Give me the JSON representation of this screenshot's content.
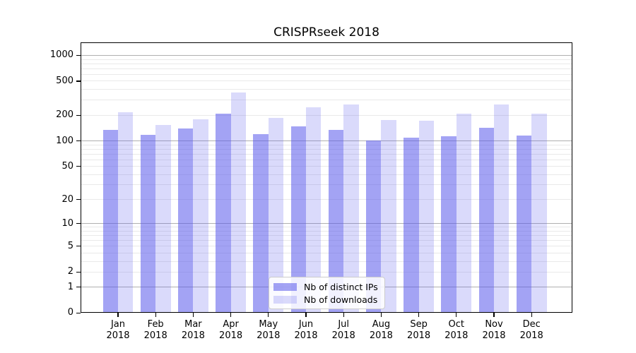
{
  "title": "CRISPRseek 2018",
  "chart_data": {
    "type": "bar",
    "title": "CRISPRseek 2018",
    "categories": [
      "Jan",
      "Feb",
      "Mar",
      "Apr",
      "May",
      "Jun",
      "Jul",
      "Aug",
      "Sep",
      "Oct",
      "Nov",
      "Dec"
    ],
    "category_year": "2018",
    "series": [
      {
        "name": "Nb of distinct IPs",
        "color": "#5858eb",
        "alpha": 0.55,
        "values": [
          134,
          117,
          141,
          209,
          119,
          149,
          134,
          102,
          110,
          113,
          142,
          116
        ]
      },
      {
        "name": "Nb of downloads",
        "color": "#5858eb",
        "alpha": 0.22,
        "values": [
          218,
          153,
          178,
          370,
          187,
          246,
          269,
          175,
          172,
          207,
          266,
          207
        ]
      }
    ],
    "xlabel": "",
    "ylabel": "",
    "yaxis": {
      "scale": "log1p",
      "tick_values": [
        0,
        1,
        2,
        5,
        10,
        20,
        50,
        100,
        200,
        500,
        1000
      ],
      "ylim": [
        0,
        1400
      ],
      "major_grid_values": [
        1,
        10,
        100,
        1000
      ],
      "minor_grid_values": [
        2,
        3,
        4,
        5,
        6,
        7,
        8,
        9,
        20,
        30,
        40,
        50,
        60,
        70,
        80,
        90,
        200,
        300,
        400,
        500,
        600,
        700,
        800,
        900
      ]
    },
    "grid": true,
    "legend": {
      "position": "inside-bottom-center",
      "entries": [
        "Nb of distinct IPs",
        "Nb of downloads"
      ]
    }
  },
  "colors": {
    "bar_base": "#5858eb",
    "major_grid": "#b0b0b0",
    "minor_grid": "#e9e9e9",
    "axis": "#000000",
    "legend_border": "#cccccc",
    "background": "#ffffff"
  }
}
